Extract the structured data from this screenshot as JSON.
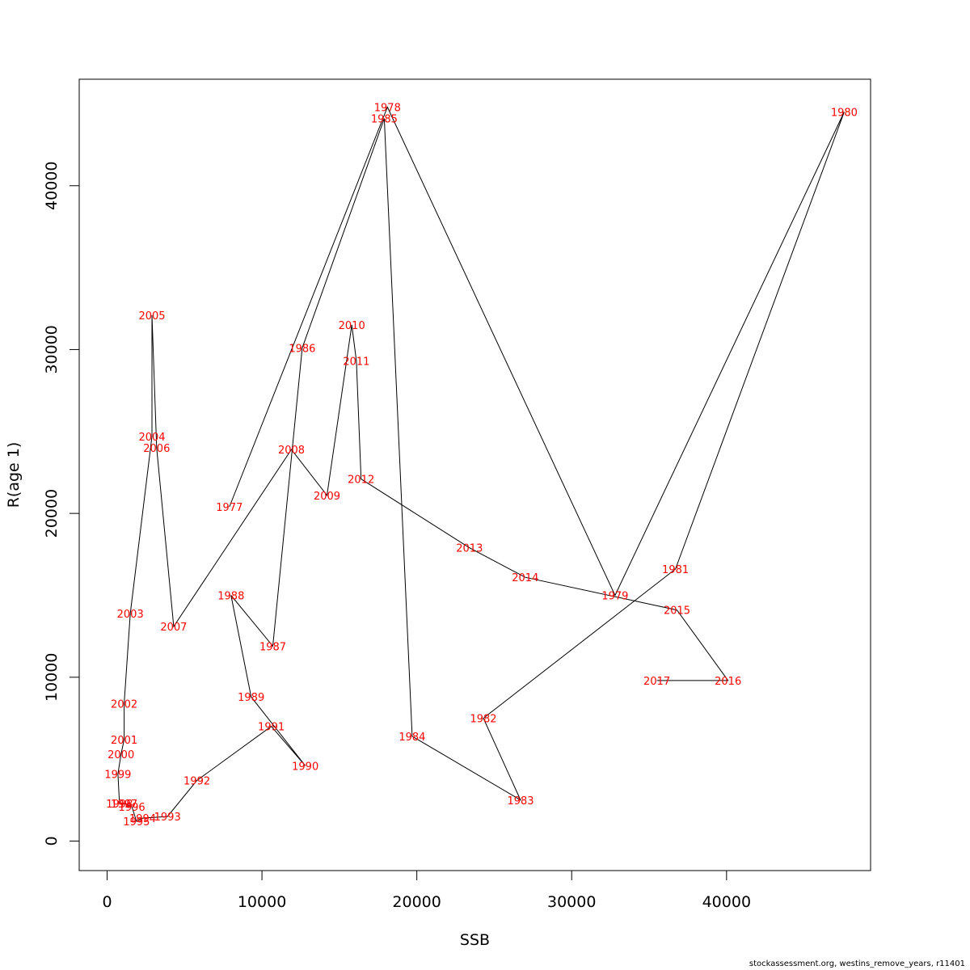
{
  "chart_data": {
    "type": "scatter",
    "xlabel": "SSB",
    "ylabel": "R(age 1)",
    "xlim": [
      -1800,
      49300
    ],
    "ylim": [
      -1800,
      46500
    ],
    "x_ticks": [
      0,
      10000,
      20000,
      30000,
      40000
    ],
    "y_ticks": [
      0,
      10000,
      20000,
      30000,
      40000
    ],
    "grid": false,
    "legend": "none",
    "line_color": "#000000",
    "label_color": "#ff0000",
    "points": [
      {
        "year": "1977",
        "x": 7900,
        "y": 20400
      },
      {
        "year": "1978",
        "x": 18100,
        "y": 44800
      },
      {
        "year": "1979",
        "x": 32800,
        "y": 15000
      },
      {
        "year": "1980",
        "x": 47600,
        "y": 44500
      },
      {
        "year": "1981",
        "x": 36700,
        "y": 16600
      },
      {
        "year": "1982",
        "x": 24300,
        "y": 7500
      },
      {
        "year": "1983",
        "x": 26700,
        "y": 2500
      },
      {
        "year": "1984",
        "x": 19700,
        "y": 6400
      },
      {
        "year": "1985",
        "x": 17900,
        "y": 44100
      },
      {
        "year": "1986",
        "x": 12600,
        "y": 30100
      },
      {
        "year": "1987",
        "x": 10700,
        "y": 11900
      },
      {
        "year": "1988",
        "x": 8000,
        "y": 15000
      },
      {
        "year": "1989",
        "x": 9300,
        "y": 8800
      },
      {
        "year": "1990",
        "x": 12800,
        "y": 4600
      },
      {
        "year": "1991",
        "x": 10600,
        "y": 7000
      },
      {
        "year": "1992",
        "x": 5800,
        "y": 3700
      },
      {
        "year": "1993",
        "x": 3900,
        "y": 1500
      },
      {
        "year": "1994",
        "x": 2300,
        "y": 1400
      },
      {
        "year": "1995",
        "x": 1900,
        "y": 1200
      },
      {
        "year": "1996",
        "x": 1600,
        "y": 2100
      },
      {
        "year": "1997",
        "x": 1100,
        "y": 2300
      },
      {
        "year": "1998",
        "x": 800,
        "y": 2300
      },
      {
        "year": "1999",
        "x": 700,
        "y": 4100
      },
      {
        "year": "2000",
        "x": 900,
        "y": 5300
      },
      {
        "year": "2001",
        "x": 1100,
        "y": 6200
      },
      {
        "year": "2002",
        "x": 1100,
        "y": 8400
      },
      {
        "year": "2003",
        "x": 1500,
        "y": 13900
      },
      {
        "year": "2004",
        "x": 2900,
        "y": 24700
      },
      {
        "year": "2005",
        "x": 2900,
        "y": 32100
      },
      {
        "year": "2006",
        "x": 3200,
        "y": 24000
      },
      {
        "year": "2007",
        "x": 4300,
        "y": 13100
      },
      {
        "year": "2008",
        "x": 11900,
        "y": 23900
      },
      {
        "year": "2009",
        "x": 14200,
        "y": 21100
      },
      {
        "year": "2010",
        "x": 15800,
        "y": 31500
      },
      {
        "year": "2011",
        "x": 16100,
        "y": 29300
      },
      {
        "year": "2012",
        "x": 16400,
        "y": 22100
      },
      {
        "year": "2013",
        "x": 23400,
        "y": 17900
      },
      {
        "year": "2014",
        "x": 27000,
        "y": 16100
      },
      {
        "year": "2015",
        "x": 36800,
        "y": 14100
      },
      {
        "year": "2016",
        "x": 40100,
        "y": 9800
      },
      {
        "year": "2017",
        "x": 35500,
        "y": 9800
      }
    ]
  },
  "footer": {
    "note": "stockassessment.org, westins_remove_years, r11401"
  }
}
